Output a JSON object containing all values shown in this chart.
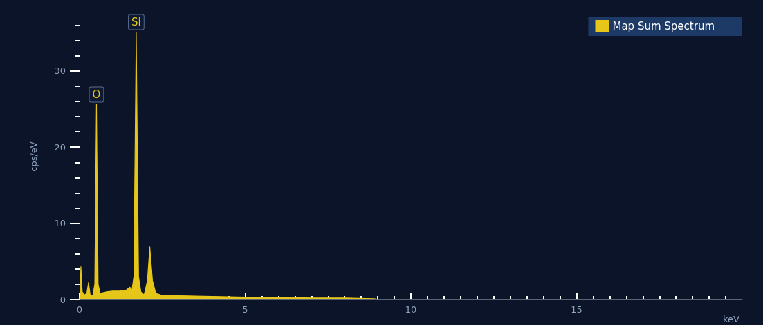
{
  "chart_data": {
    "type": "area",
    "xlabel": "keV",
    "ylabel": "cps/eV",
    "xlim": [
      0,
      20
    ],
    "xticks": [
      0,
      5,
      10,
      15
    ],
    "ylim": [
      0,
      37.5
    ],
    "yticks": [
      0,
      10,
      20,
      30
    ],
    "grid": false,
    "legend": "top right",
    "marker": "none",
    "series": [
      {
        "name": "Map Sum Spectrum",
        "color": "#e6c619",
        "x": [
          0,
          0.02,
          0.04,
          0.08,
          0.15,
          0.22,
          0.27,
          0.32,
          0.4,
          0.46,
          0.51,
          0.56,
          0.62,
          0.8,
          1.0,
          1.2,
          1.4,
          1.52,
          1.58,
          1.64,
          1.71,
          1.78,
          1.85,
          1.95,
          2.05,
          2.12,
          2.2,
          2.3,
          2.45,
          3,
          4,
          5,
          6,
          7,
          8,
          8.9,
          9.0
        ],
        "values": [
          0,
          1,
          4.3,
          1.0,
          0.6,
          0.8,
          2.2,
          0.6,
          0.5,
          2,
          25.6,
          2,
          0.8,
          1.0,
          1.1,
          1.1,
          1.2,
          1.6,
          1.2,
          3,
          35.1,
          3,
          1.0,
          0.6,
          2.5,
          6.9,
          2.5,
          0.8,
          0.6,
          0.5,
          0.4,
          0.3,
          0.3,
          0.2,
          0.2,
          0.1,
          0
        ]
      }
    ],
    "annotations": [
      {
        "text": "O",
        "x": 0.51,
        "y": 25.6
      },
      {
        "text": "Si",
        "x": 1.71,
        "y": 35.1
      }
    ]
  }
}
